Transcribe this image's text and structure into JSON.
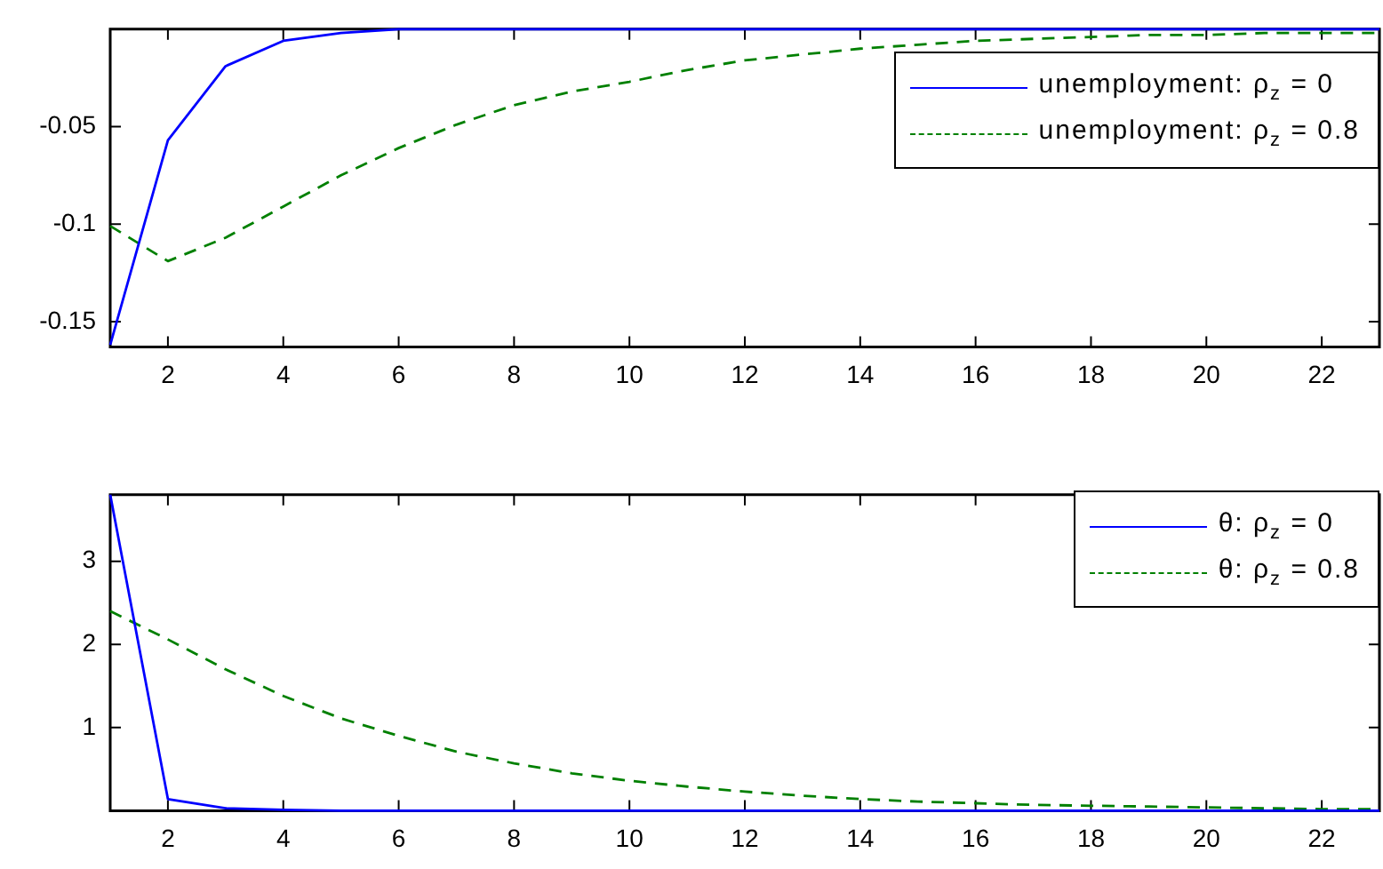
{
  "chart_data": [
    {
      "type": "line",
      "x": [
        1,
        2,
        3,
        4,
        5,
        6,
        7,
        8,
        9,
        10,
        11,
        12,
        13,
        14,
        15,
        16,
        17,
        18,
        19,
        20,
        21,
        22,
        23
      ],
      "xlim": [
        1,
        23
      ],
      "xticks": [
        2,
        4,
        6,
        8,
        10,
        12,
        14,
        16,
        18,
        20,
        22
      ],
      "ylim": [
        -0.163,
        0
      ],
      "yticks": [
        -0.15,
        -0.1,
        -0.05
      ],
      "legend": "top right",
      "grid": false,
      "series": [
        {
          "name": "unemployment: ρ$_{z}$ = 0",
          "color": "#0000ff",
          "line_style": "solid",
          "values": [
            -0.162,
            -0.057,
            -0.019,
            -0.006,
            -0.002,
            0,
            0,
            0,
            0,
            0,
            0,
            0,
            0,
            0,
            0,
            0,
            0,
            0,
            0,
            0,
            0,
            0,
            0
          ]
        },
        {
          "name": "unemployment: ρ$_{z}$ = 0.8",
          "color": "#008000",
          "line_style": "dashed",
          "values": [
            -0.101,
            -0.119,
            -0.107,
            -0.091,
            -0.075,
            -0.061,
            -0.049,
            -0.039,
            -0.032,
            -0.027,
            -0.021,
            -0.016,
            -0.013,
            -0.01,
            -0.008,
            -0.006,
            -0.005,
            -0.004,
            -0.003,
            -0.003,
            -0.002,
            -0.002,
            -0.002
          ]
        }
      ]
    },
    {
      "type": "line",
      "x": [
        1,
        2,
        3,
        4,
        5,
        6,
        7,
        8,
        9,
        10,
        11,
        12,
        13,
        14,
        15,
        16,
        17,
        18,
        19,
        20,
        21,
        22,
        23
      ],
      "xlim": [
        1,
        23
      ],
      "xticks": [
        2,
        4,
        6,
        8,
        10,
        12,
        14,
        16,
        18,
        20,
        22
      ],
      "ylim": [
        0,
        3.8
      ],
      "yticks": [
        1,
        2,
        3
      ],
      "legend": "top right",
      "grid": false,
      "series": [
        {
          "name": "θ: ρ$_{z}$ = 0",
          "color": "#0000ff",
          "line_style": "solid",
          "values": [
            3.8,
            0.14,
            0.03,
            0.01,
            0,
            0,
            0,
            0,
            0,
            0,
            0,
            0,
            0,
            0,
            0,
            0,
            0,
            0,
            0,
            0,
            0,
            0,
            0
          ]
        },
        {
          "name": "θ: ρ$_{z}$ = 0.8",
          "color": "#008000",
          "line_style": "dashed",
          "values": [
            2.4,
            2.06,
            1.7,
            1.38,
            1.11,
            0.9,
            0.71,
            0.57,
            0.45,
            0.36,
            0.29,
            0.23,
            0.18,
            0.14,
            0.11,
            0.09,
            0.07,
            0.06,
            0.05,
            0.04,
            0.03,
            0.02,
            0.02
          ]
        }
      ]
    }
  ]
}
